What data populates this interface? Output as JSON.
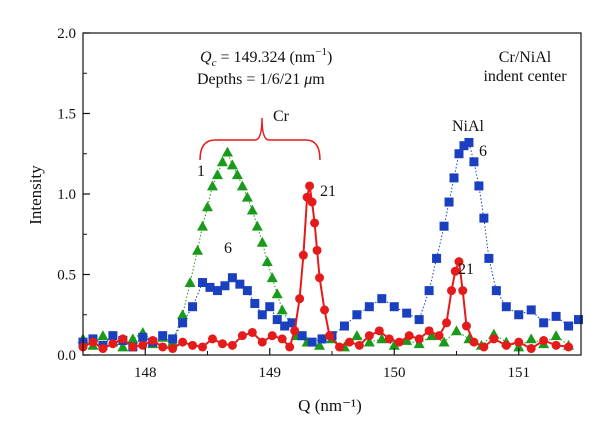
{
  "chart_data": {
    "type": "scatter",
    "title": "",
    "xlabel": "Q (nm⁻¹)",
    "ylabel": "Intensity",
    "xlim": [
      147.5,
      151.5
    ],
    "ylim": [
      0,
      2.0
    ],
    "xticks": [
      "148",
      "149",
      "150",
      "151"
    ],
    "yticks": [
      "0.0",
      "0.5",
      "1.0",
      "1.5",
      "2.0"
    ],
    "grid": false,
    "annotations": {
      "qc_line": "Q_c = 149.324 (nm⁻¹)",
      "qc_prefix": "Q",
      "qc_sub": "c",
      "qc_value": " = 149.324 (nm",
      "qc_exp": "−1",
      "qc_close": ")",
      "depths_prefix": "Depths = 1/6/21 ",
      "depths_unit_mu": "μ",
      "depths_unit_m": "m",
      "sample_line1": "Cr/NiAl",
      "sample_line2": "indent center",
      "cr_label": "Cr",
      "nial_label": "NiAl",
      "depth1_label": "1",
      "depth6_cr_label": "6",
      "depth21_cr_label": "21",
      "depth6_nial_label": "6",
      "depth21_nial_label": "21"
    },
    "series": [
      {
        "name": "1",
        "marker": "triangle",
        "color": "#1a9a1a",
        "x": [
          147.5,
          147.58,
          147.66,
          147.74,
          147.82,
          147.9,
          147.98,
          148.06,
          148.14,
          148.22,
          148.3,
          148.36,
          148.42,
          148.46,
          148.5,
          148.54,
          148.58,
          148.62,
          148.66,
          148.7,
          148.74,
          148.78,
          148.82,
          148.86,
          148.9,
          148.94,
          148.98,
          149.02,
          149.06,
          149.1,
          149.16,
          149.22,
          149.3,
          149.4,
          149.5,
          149.6,
          149.7,
          149.8,
          149.9,
          150.0,
          150.1,
          150.2,
          150.3,
          150.4,
          150.5,
          150.6,
          150.7,
          150.8,
          150.9,
          151.0,
          151.1,
          151.2,
          151.3,
          151.4
        ],
        "y": [
          0.1,
          0.06,
          0.12,
          0.08,
          0.05,
          0.1,
          0.14,
          0.07,
          0.11,
          0.08,
          0.25,
          0.45,
          0.65,
          0.8,
          0.92,
          1.05,
          1.12,
          1.2,
          1.26,
          1.18,
          1.12,
          1.05,
          0.98,
          0.9,
          0.8,
          0.7,
          0.58,
          0.48,
          0.38,
          0.28,
          0.2,
          0.12,
          0.08,
          0.06,
          0.1,
          0.05,
          0.12,
          0.08,
          0.1,
          0.06,
          0.09,
          0.07,
          0.12,
          0.08,
          0.15,
          0.1,
          0.06,
          0.13,
          0.08,
          0.05,
          0.1,
          0.07,
          0.12,
          0.06
        ]
      },
      {
        "name": "6",
        "marker": "square",
        "color": "#1a3fbf",
        "x": [
          147.5,
          147.58,
          147.66,
          147.74,
          147.82,
          147.9,
          147.98,
          148.06,
          148.14,
          148.22,
          148.3,
          148.38,
          148.46,
          148.52,
          148.58,
          148.64,
          148.7,
          148.76,
          148.82,
          148.88,
          148.94,
          149.0,
          149.06,
          149.12,
          149.18,
          149.26,
          149.34,
          149.42,
          149.5,
          149.6,
          149.7,
          149.8,
          149.9,
          150.0,
          150.1,
          150.2,
          150.28,
          150.34,
          150.4,
          150.44,
          150.48,
          150.52,
          150.56,
          150.6,
          150.64,
          150.68,
          150.72,
          150.76,
          150.82,
          150.9,
          151.0,
          151.1,
          151.2,
          151.3,
          151.4,
          151.48
        ],
        "y": [
          0.08,
          0.1,
          0.06,
          0.12,
          0.09,
          0.05,
          0.11,
          0.08,
          0.12,
          0.1,
          0.2,
          0.3,
          0.45,
          0.42,
          0.4,
          0.43,
          0.48,
          0.44,
          0.4,
          0.32,
          0.25,
          0.3,
          0.22,
          0.18,
          0.2,
          0.12,
          0.08,
          0.1,
          0.12,
          0.18,
          0.25,
          0.3,
          0.35,
          0.3,
          0.26,
          0.22,
          0.4,
          0.6,
          0.8,
          0.95,
          1.1,
          1.25,
          1.3,
          1.32,
          1.2,
          1.05,
          0.85,
          0.6,
          0.4,
          0.3,
          0.25,
          0.28,
          0.2,
          0.24,
          0.18,
          0.22
        ]
      },
      {
        "name": "21",
        "marker": "circle",
        "color": "#e51a1a",
        "x": [
          147.5,
          147.58,
          147.66,
          147.74,
          147.82,
          147.9,
          147.98,
          148.06,
          148.14,
          148.22,
          148.3,
          148.38,
          148.46,
          148.54,
          148.62,
          148.7,
          148.78,
          148.86,
          148.94,
          149.02,
          149.1,
          149.16,
          149.2,
          149.24,
          149.27,
          149.3,
          149.32,
          149.34,
          149.36,
          149.38,
          149.4,
          149.44,
          149.48,
          149.56,
          149.64,
          149.72,
          149.8,
          149.88,
          149.96,
          150.04,
          150.12,
          150.2,
          150.28,
          150.36,
          150.42,
          150.46,
          150.49,
          150.52,
          150.55,
          150.58,
          150.64,
          150.72,
          150.8,
          150.9,
          151.0,
          151.1,
          151.2,
          151.3,
          151.4
        ],
        "y": [
          0.05,
          0.08,
          0.04,
          0.07,
          0.1,
          0.05,
          0.06,
          0.09,
          0.05,
          0.04,
          0.08,
          0.06,
          0.05,
          0.1,
          0.07,
          0.06,
          0.12,
          0.14,
          0.08,
          0.12,
          0.1,
          0.05,
          0.15,
          0.35,
          0.62,
          0.98,
          1.05,
          0.95,
          0.82,
          0.65,
          0.48,
          0.28,
          0.12,
          0.05,
          0.08,
          0.06,
          0.12,
          0.15,
          0.1,
          0.08,
          0.12,
          0.1,
          0.15,
          0.12,
          0.2,
          0.4,
          0.52,
          0.58,
          0.4,
          0.18,
          0.08,
          0.05,
          0.1,
          0.06,
          0.08,
          0.04,
          0.09,
          0.06,
          0.05
        ]
      }
    ]
  }
}
